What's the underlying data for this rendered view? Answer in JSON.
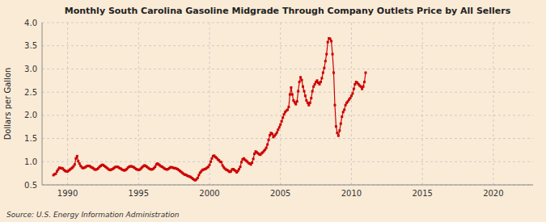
{
  "chart_data": {
    "type": "line",
    "title": "Monthly South Carolina Gasoline Midgrade Through Company Outlets Price by All Sellers",
    "ylabel": "Dollars per Gallon",
    "source": "Source: U.S. Energy Information Administration",
    "color": "#cc0000",
    "marker": "square",
    "line_style": "solid",
    "grid": true,
    "xlim": [
      1988.2,
      2022.8
    ],
    "ylim": [
      0.5,
      4.0
    ],
    "xticks": [
      1990,
      1995,
      2000,
      2005,
      2010,
      2015,
      2020
    ],
    "yticks": [
      0.5,
      {
        "value": 1.0,
        "label": "1.0"
      },
      1.5,
      {
        "value": 2.0,
        "label": "2.0"
      },
      2.5,
      {
        "value": 3.0,
        "label": "3.0"
      },
      3.5,
      {
        "value": 4.0,
        "label": "4.0"
      }
    ],
    "x": [
      1989.0,
      1989.083,
      1989.167,
      1989.25,
      1989.333,
      1989.417,
      1989.5,
      1989.583,
      1989.667,
      1989.75,
      1989.833,
      1989.917,
      1990.0,
      1990.083,
      1990.167,
      1990.25,
      1990.333,
      1990.417,
      1990.5,
      1990.583,
      1990.667,
      1990.75,
      1990.833,
      1990.917,
      1991.0,
      1991.083,
      1991.167,
      1991.25,
      1991.333,
      1991.417,
      1991.5,
      1991.583,
      1991.667,
      1991.75,
      1991.833,
      1991.917,
      1992.0,
      1992.083,
      1992.167,
      1992.25,
      1992.333,
      1992.417,
      1992.5,
      1992.583,
      1992.667,
      1992.75,
      1992.833,
      1992.917,
      1993.0,
      1993.083,
      1993.167,
      1993.25,
      1993.333,
      1993.417,
      1993.5,
      1993.583,
      1993.667,
      1993.75,
      1993.833,
      1993.917,
      1994.0,
      1994.083,
      1994.167,
      1994.25,
      1994.333,
      1994.417,
      1994.5,
      1994.583,
      1994.667,
      1994.75,
      1994.833,
      1994.917,
      1995.0,
      1995.083,
      1995.167,
      1995.25,
      1995.333,
      1995.417,
      1995.5,
      1995.583,
      1995.667,
      1995.75,
      1995.833,
      1995.917,
      1996.0,
      1996.083,
      1996.167,
      1996.25,
      1996.333,
      1996.417,
      1996.5,
      1996.583,
      1996.667,
      1996.75,
      1996.833,
      1996.917,
      1997.0,
      1997.083,
      1997.167,
      1997.25,
      1997.333,
      1997.417,
      1997.5,
      1997.583,
      1997.667,
      1997.75,
      1997.833,
      1997.917,
      1998.0,
      1998.083,
      1998.167,
      1998.25,
      1998.333,
      1998.417,
      1998.5,
      1998.583,
      1998.667,
      1998.75,
      1998.833,
      1998.917,
      1999.0,
      1999.083,
      1999.167,
      1999.25,
      1999.333,
      1999.417,
      1999.5,
      1999.583,
      1999.667,
      1999.75,
      1999.833,
      1999.917,
      2000.0,
      2000.083,
      2000.167,
      2000.25,
      2000.333,
      2000.417,
      2000.5,
      2000.583,
      2000.667,
      2000.75,
      2000.833,
      2000.917,
      2001.0,
      2001.083,
      2001.167,
      2001.25,
      2001.333,
      2001.417,
      2001.5,
      2001.583,
      2001.667,
      2001.75,
      2001.833,
      2001.917,
      2002.0,
      2002.083,
      2002.167,
      2002.25,
      2002.333,
      2002.417,
      2002.5,
      2002.583,
      2002.667,
      2002.75,
      2002.833,
      2002.917,
      2003.0,
      2003.083,
      2003.167,
      2003.25,
      2003.333,
      2003.417,
      2003.5,
      2003.583,
      2003.667,
      2003.75,
      2003.833,
      2003.917,
      2004.0,
      2004.083,
      2004.167,
      2004.25,
      2004.333,
      2004.417,
      2004.5,
      2004.583,
      2004.667,
      2004.75,
      2004.833,
      2004.917,
      2005.0,
      2005.083,
      2005.167,
      2005.25,
      2005.333,
      2005.417,
      2005.5,
      2005.583,
      2005.667,
      2005.75,
      2005.833,
      2005.917,
      2006.0,
      2006.083,
      2006.167,
      2006.25,
      2006.333,
      2006.417,
      2006.5,
      2006.583,
      2006.667,
      2006.75,
      2006.833,
      2006.917,
      2007.0,
      2007.083,
      2007.167,
      2007.25,
      2007.333,
      2007.417,
      2007.5,
      2007.583,
      2007.667,
      2007.75,
      2007.833,
      2007.917,
      2008.0,
      2008.083,
      2008.167,
      2008.25,
      2008.333,
      2008.417,
      2008.5,
      2008.583,
      2008.667,
      2008.75,
      2008.833,
      2008.917,
      2009.0,
      2009.083,
      2009.167,
      2009.25,
      2009.333,
      2009.417,
      2009.5,
      2009.583,
      2009.667,
      2009.75,
      2009.833,
      2009.917,
      2010.0,
      2010.083,
      2010.167,
      2010.25,
      2010.333,
      2010.417,
      2010.5,
      2010.583,
      2010.667,
      2010.75,
      2010.833,
      2010.917,
      2011.0
    ],
    "values": [
      0.71,
      0.73,
      0.74,
      0.79,
      0.83,
      0.87,
      0.86,
      0.86,
      0.85,
      0.82,
      0.8,
      0.79,
      0.79,
      0.81,
      0.83,
      0.85,
      0.87,
      0.9,
      0.94,
      1.07,
      1.12,
      1.01,
      0.96,
      0.91,
      0.88,
      0.86,
      0.87,
      0.88,
      0.9,
      0.91,
      0.91,
      0.9,
      0.88,
      0.87,
      0.85,
      0.83,
      0.83,
      0.84,
      0.86,
      0.89,
      0.91,
      0.93,
      0.93,
      0.91,
      0.89,
      0.87,
      0.85,
      0.83,
      0.82,
      0.83,
      0.84,
      0.86,
      0.88,
      0.89,
      0.89,
      0.88,
      0.86,
      0.85,
      0.83,
      0.82,
      0.81,
      0.82,
      0.84,
      0.87,
      0.89,
      0.9,
      0.9,
      0.89,
      0.88,
      0.86,
      0.84,
      0.83,
      0.82,
      0.83,
      0.85,
      0.88,
      0.9,
      0.92,
      0.91,
      0.89,
      0.87,
      0.85,
      0.84,
      0.83,
      0.84,
      0.86,
      0.89,
      0.94,
      0.96,
      0.94,
      0.92,
      0.9,
      0.89,
      0.87,
      0.85,
      0.84,
      0.83,
      0.84,
      0.86,
      0.88,
      0.88,
      0.87,
      0.86,
      0.86,
      0.85,
      0.84,
      0.82,
      0.8,
      0.78,
      0.76,
      0.74,
      0.72,
      0.72,
      0.7,
      0.69,
      0.68,
      0.67,
      0.65,
      0.63,
      0.61,
      0.6,
      0.62,
      0.65,
      0.71,
      0.76,
      0.79,
      0.82,
      0.83,
      0.84,
      0.85,
      0.87,
      0.89,
      0.93,
      1.0,
      1.07,
      1.12,
      1.13,
      1.1,
      1.08,
      1.05,
      1.03,
      1.0,
      0.99,
      0.92,
      0.88,
      0.85,
      0.83,
      0.82,
      0.8,
      0.78,
      0.79,
      0.83,
      0.84,
      0.82,
      0.8,
      0.77,
      0.8,
      0.84,
      0.89,
      0.99,
      1.05,
      1.07,
      1.04,
      1.02,
      1.0,
      0.97,
      0.96,
      0.94,
      0.98,
      1.06,
      1.17,
      1.22,
      1.2,
      1.18,
      1.16,
      1.15,
      1.18,
      1.2,
      1.23,
      1.26,
      1.3,
      1.37,
      1.47,
      1.57,
      1.62,
      1.6,
      1.53,
      1.56,
      1.59,
      1.63,
      1.69,
      1.74,
      1.8,
      1.87,
      1.95,
      2.02,
      2.07,
      2.1,
      2.12,
      2.18,
      2.45,
      2.6,
      2.45,
      2.32,
      2.28,
      2.24,
      2.3,
      2.52,
      2.72,
      2.82,
      2.76,
      2.62,
      2.52,
      2.42,
      2.32,
      2.27,
      2.22,
      2.27,
      2.37,
      2.52,
      2.62,
      2.67,
      2.72,
      2.75,
      2.7,
      2.67,
      2.72,
      2.8,
      2.92,
      3.02,
      3.17,
      3.32,
      3.58,
      3.66,
      3.65,
      3.6,
      3.32,
      2.92,
      2.22,
      1.76,
      1.62,
      1.56,
      1.67,
      1.82,
      1.97,
      2.07,
      2.12,
      2.22,
      2.27,
      2.3,
      2.34,
      2.37,
      2.42,
      2.47,
      2.57,
      2.67,
      2.72,
      2.7,
      2.67,
      2.64,
      2.62,
      2.57,
      2.62,
      2.72,
      2.92
    ]
  }
}
